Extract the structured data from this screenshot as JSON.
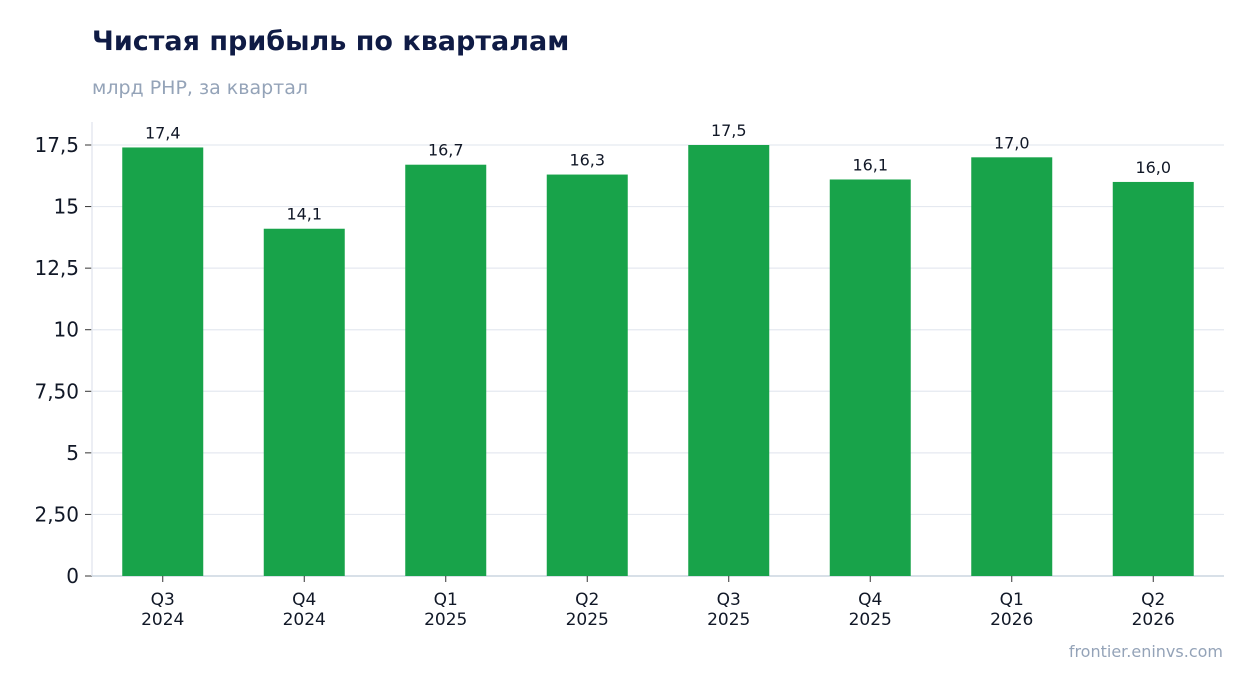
{
  "title": "Чистая прибыль по кварталам",
  "subtitle": "млрд РНР, за квартал",
  "footer": "frontier.eninvs.com",
  "colors": {
    "bar": "#18a34a",
    "grid": "#e5e9f0",
    "axis": "#cbd5e1",
    "title": "#0f1b45",
    "muted": "#94a3b8"
  },
  "chart_data": {
    "type": "bar",
    "categories": [
      [
        "Q3",
        "2024"
      ],
      [
        "Q4",
        "2024"
      ],
      [
        "Q1",
        "2025"
      ],
      [
        "Q2",
        "2025"
      ],
      [
        "Q3",
        "2025"
      ],
      [
        "Q4",
        "2025"
      ],
      [
        "Q1",
        "2026"
      ],
      [
        "Q2",
        "2026"
      ]
    ],
    "values": [
      17.4,
      14.1,
      16.7,
      16.3,
      17.5,
      16.1,
      17.0,
      16.0
    ],
    "value_labels": [
      "17,4",
      "14,1",
      "16,7",
      "16,3",
      "17,5",
      "16,1",
      "17,0",
      "16,0"
    ],
    "y_ticks": [
      0,
      2.5,
      5,
      7.5,
      10,
      12.5,
      15,
      17.5
    ],
    "y_tick_labels": [
      "0",
      "2,50",
      "5",
      "7,50",
      "10",
      "12,5",
      "15",
      "17,5"
    ],
    "ylim": [
      0,
      17.5
    ],
    "grid": true,
    "legend": "none"
  }
}
